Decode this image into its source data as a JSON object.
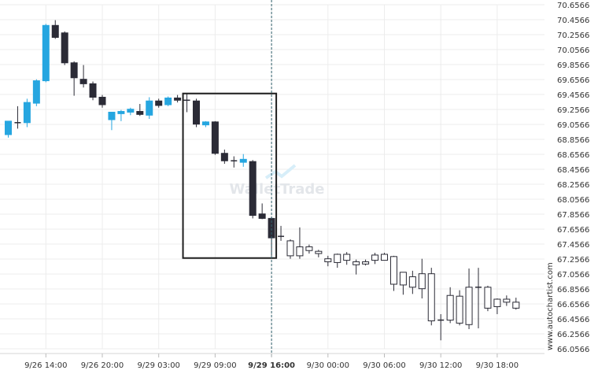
{
  "chart_data": {
    "type": "candlestick",
    "y_ticks": [
      "70.6566",
      "70.4566",
      "70.2566",
      "70.0566",
      "69.8566",
      "69.6566",
      "69.4566",
      "69.2566",
      "69.0566",
      "68.8566",
      "68.6566",
      "68.4566",
      "68.2566",
      "68.0566",
      "67.8566",
      "67.6566",
      "67.4566",
      "67.2566",
      "67.0566",
      "66.8566",
      "66.6566",
      "66.4566",
      "66.2566",
      "66.0566"
    ],
    "ylim": [
      66.0566,
      70.6566
    ],
    "x_ticks": [
      {
        "label": "9/26 14:00",
        "index": 4
      },
      {
        "label": "9/26 20:00",
        "index": 10
      },
      {
        "label": "9/29 03:00",
        "index": 16
      },
      {
        "label": "9/29 09:00",
        "index": 22
      },
      {
        "label": "9/29 16:00",
        "index": 28,
        "bold": true
      },
      {
        "label": "9/30 00:00",
        "index": 34
      },
      {
        "label": "9/30 06:00",
        "index": 40
      },
      {
        "label": "9/30 12:00",
        "index": 46
      },
      {
        "label": "9/30 18:00",
        "index": 52
      }
    ],
    "colors": {
      "up": "#26a6e0",
      "down": "#2b2b36",
      "future": "#2b2b36",
      "future_fill": "#ffffff",
      "grid": "#ececec",
      "box": "#1e1e1e",
      "vline": "#2f5f6a"
    },
    "candles": [
      {
        "o": 68.92,
        "h": 69.1,
        "l": 68.88,
        "c": 69.1,
        "k": "up"
      },
      {
        "o": 69.08,
        "h": 69.3,
        "l": 69.0,
        "c": 69.08,
        "k": "down"
      },
      {
        "o": 69.08,
        "h": 69.4,
        "l": 69.02,
        "c": 69.35,
        "k": "up"
      },
      {
        "o": 69.34,
        "h": 69.66,
        "l": 69.3,
        "c": 69.64,
        "k": "up"
      },
      {
        "o": 69.64,
        "h": 70.4,
        "l": 69.62,
        "c": 70.38,
        "k": "up"
      },
      {
        "o": 70.38,
        "h": 70.45,
        "l": 70.2,
        "c": 70.22,
        "k": "down"
      },
      {
        "o": 70.28,
        "h": 70.3,
        "l": 69.85,
        "c": 69.88,
        "k": "down"
      },
      {
        "o": 69.88,
        "h": 69.9,
        "l": 69.44,
        "c": 69.68,
        "k": "down"
      },
      {
        "o": 69.66,
        "h": 69.85,
        "l": 69.55,
        "c": 69.6,
        "k": "down"
      },
      {
        "o": 69.6,
        "h": 69.63,
        "l": 69.38,
        "c": 69.42,
        "k": "down"
      },
      {
        "o": 69.42,
        "h": 69.45,
        "l": 69.28,
        "c": 69.32,
        "k": "down"
      },
      {
        "o": 69.12,
        "h": 69.22,
        "l": 68.98,
        "c": 69.22,
        "k": "up"
      },
      {
        "o": 69.2,
        "h": 69.25,
        "l": 69.1,
        "c": 69.23,
        "k": "up"
      },
      {
        "o": 69.22,
        "h": 69.28,
        "l": 69.18,
        "c": 69.26,
        "k": "up"
      },
      {
        "o": 69.23,
        "h": 69.33,
        "l": 69.17,
        "c": 69.19,
        "k": "down"
      },
      {
        "o": 69.18,
        "h": 69.42,
        "l": 69.13,
        "c": 69.37,
        "k": "up"
      },
      {
        "o": 69.37,
        "h": 69.4,
        "l": 69.28,
        "c": 69.31,
        "k": "down"
      },
      {
        "o": 69.32,
        "h": 69.43,
        "l": 69.3,
        "c": 69.41,
        "k": "up"
      },
      {
        "o": 69.41,
        "h": 69.45,
        "l": 69.35,
        "c": 69.38,
        "k": "down"
      },
      {
        "o": 69.38,
        "h": 69.47,
        "l": 69.22,
        "c": 69.37,
        "k": "down"
      },
      {
        "o": 69.37,
        "h": 69.4,
        "l": 69.02,
        "c": 69.06,
        "k": "down"
      },
      {
        "o": 69.05,
        "h": 69.1,
        "l": 69.02,
        "c": 69.09,
        "k": "up"
      },
      {
        "o": 69.09,
        "h": 69.1,
        "l": 68.65,
        "c": 68.67,
        "k": "down"
      },
      {
        "o": 68.67,
        "h": 68.72,
        "l": 68.53,
        "c": 68.57,
        "k": "down"
      },
      {
        "o": 68.57,
        "h": 68.63,
        "l": 68.48,
        "c": 68.56,
        "k": "down"
      },
      {
        "o": 68.55,
        "h": 68.66,
        "l": 68.49,
        "c": 68.59,
        "k": "up"
      },
      {
        "o": 68.56,
        "h": 68.58,
        "l": 67.8,
        "c": 67.84,
        "k": "down"
      },
      {
        "o": 67.86,
        "h": 68.0,
        "l": 67.79,
        "c": 67.8,
        "k": "down"
      },
      {
        "o": 67.8,
        "h": 67.82,
        "l": 67.3,
        "c": 67.54,
        "k": "down"
      },
      {
        "o": 67.56,
        "h": 67.7,
        "l": 67.5,
        "c": 67.56,
        "k": "future"
      },
      {
        "o": 67.5,
        "h": 67.52,
        "l": 67.26,
        "c": 67.3,
        "k": "future"
      },
      {
        "o": 67.3,
        "h": 67.68,
        "l": 67.26,
        "c": 67.42,
        "k": "future"
      },
      {
        "o": 67.42,
        "h": 67.45,
        "l": 67.33,
        "c": 67.37,
        "k": "future"
      },
      {
        "o": 67.36,
        "h": 67.38,
        "l": 67.28,
        "c": 67.33,
        "k": "future"
      },
      {
        "o": 67.26,
        "h": 67.3,
        "l": 67.16,
        "c": 67.22,
        "k": "future"
      },
      {
        "o": 67.21,
        "h": 67.33,
        "l": 67.14,
        "c": 67.32,
        "k": "future"
      },
      {
        "o": 67.32,
        "h": 67.35,
        "l": 67.18,
        "c": 67.24,
        "k": "future"
      },
      {
        "o": 67.22,
        "h": 67.25,
        "l": 67.05,
        "c": 67.18,
        "k": "future"
      },
      {
        "o": 67.19,
        "h": 67.25,
        "l": 67.17,
        "c": 67.22,
        "k": "future"
      },
      {
        "o": 67.24,
        "h": 67.34,
        "l": 67.19,
        "c": 67.31,
        "k": "future"
      },
      {
        "o": 67.24,
        "h": 67.34,
        "l": 67.24,
        "c": 67.32,
        "k": "future"
      },
      {
        "o": 67.29,
        "h": 67.3,
        "l": 66.83,
        "c": 66.92,
        "k": "future"
      },
      {
        "o": 66.91,
        "h": 67.08,
        "l": 66.78,
        "c": 67.08,
        "k": "future"
      },
      {
        "o": 67.02,
        "h": 67.1,
        "l": 66.79,
        "c": 66.88,
        "k": "future"
      },
      {
        "o": 66.86,
        "h": 67.26,
        "l": 66.73,
        "c": 67.06,
        "k": "future"
      },
      {
        "o": 67.06,
        "h": 67.14,
        "l": 66.37,
        "c": 66.43,
        "k": "future"
      },
      {
        "o": 66.44,
        "h": 66.52,
        "l": 66.17,
        "c": 66.44,
        "k": "future"
      },
      {
        "o": 66.44,
        "h": 66.88,
        "l": 66.4,
        "c": 66.77,
        "k": "future"
      },
      {
        "o": 66.76,
        "h": 66.84,
        "l": 66.37,
        "c": 66.4,
        "k": "future"
      },
      {
        "o": 66.38,
        "h": 67.13,
        "l": 66.32,
        "c": 66.88,
        "k": "future"
      },
      {
        "o": 66.88,
        "h": 67.14,
        "l": 66.33,
        "c": 66.88,
        "k": "future"
      },
      {
        "o": 66.88,
        "h": 66.9,
        "l": 66.56,
        "c": 66.6,
        "k": "future"
      },
      {
        "o": 66.62,
        "h": 66.73,
        "l": 66.52,
        "c": 66.72,
        "k": "future"
      },
      {
        "o": 66.72,
        "h": 66.77,
        "l": 66.63,
        "c": 66.68,
        "k": "future"
      },
      {
        "o": 66.68,
        "h": 66.74,
        "l": 66.58,
        "c": 66.6,
        "k": "future"
      }
    ],
    "highlight": {
      "from_index": 19,
      "to_index": 28,
      "top": 69.47,
      "bottom": 67.27
    },
    "vertical_line_index": 28
  },
  "watermark": "WalletTrade",
  "side_label": "www.autochartist.com"
}
